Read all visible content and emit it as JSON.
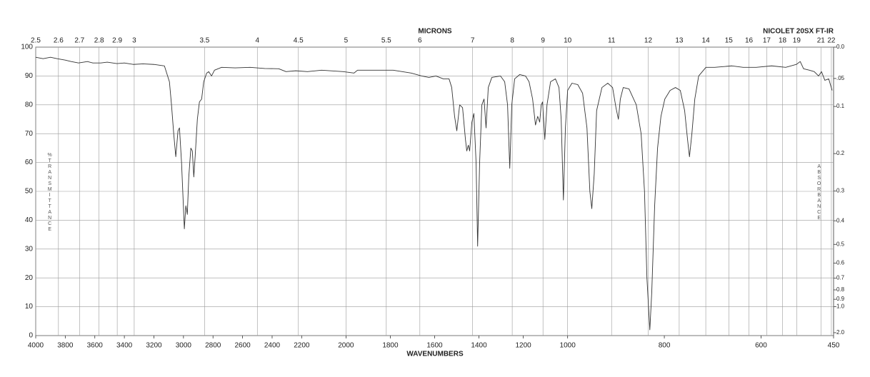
{
  "chart_data": {
    "type": "line",
    "title": "MICRONS",
    "subtitle": "NICOLET 20SX FT-IR",
    "x_label": "WAVENUMBERS",
    "y_label": "%TRANSMITTANCE",
    "y2_label": "ABSORBANCE",
    "color": "#333333",
    "grid": true,
    "xlim": [
      4000,
      450
    ],
    "x_segment_bounds": [
      2200,
      1000
    ],
    "xticks": [
      4000,
      3800,
      3600,
      3400,
      3200,
      3000,
      2800,
      2600,
      2400,
      2200,
      2000,
      1800,
      1600,
      1400,
      1200,
      1000,
      800,
      600,
      450
    ],
    "micron_ticks": [
      2.5,
      2.6,
      2.7,
      2.8,
      2.9,
      3,
      3.5,
      4,
      4.5,
      5,
      5.5,
      6,
      7,
      8,
      9,
      10,
      11,
      12,
      13,
      14,
      15,
      16,
      17,
      18,
      19,
      21,
      22
    ],
    "ylim": [
      0,
      100
    ],
    "yticks": [
      0,
      10,
      20,
      30,
      40,
      50,
      60,
      70,
      80,
      90,
      100
    ],
    "absorbance_ticks": [
      {
        "value": 0,
        "label": "0.0"
      },
      {
        "value": 0.05,
        "label": ".05"
      },
      0.1,
      0.2,
      0.3,
      0.4,
      0.5,
      0.6,
      0.7,
      0.8,
      0.9,
      {
        "value": 1,
        "label": "1.0"
      },
      {
        "value": 2,
        "label": "2.0"
      }
    ],
    "x": [
      4000,
      3950,
      3900,
      3855,
      3800,
      3760,
      3710,
      3650,
      3613,
      3560,
      3516,
      3450,
      3400,
      3340,
      3274,
      3200,
      3129,
      3095,
      3081,
      3066,
      3052,
      3037,
      3027,
      3013,
      2994,
      2984,
      2974,
      2964,
      2950,
      2940,
      2930,
      2921,
      2906,
      2892,
      2877,
      2863,
      2843,
      2829,
      2810,
      2790,
      2742,
      2650,
      2548,
      2450,
      2355,
      2306,
      2240,
      2174,
      2110,
      2013,
      1964,
      1948,
      1870,
      1787,
      1706,
      1658,
      1626,
      1594,
      1561,
      1535,
      1523,
      1510,
      1500,
      1487,
      1474,
      1461,
      1455,
      1448,
      1442,
      1432,
      1423,
      1413,
      1406,
      1397,
      1387,
      1377,
      1368,
      1358,
      1342,
      1303,
      1284,
      1271,
      1261,
      1252,
      1239,
      1216,
      1190,
      1174,
      1158,
      1145,
      1135,
      1126,
      1119,
      1113,
      1103,
      1093,
      1077,
      1055,
      1039,
      1029,
      1019,
      1010,
      1000,
      991,
      979,
      969,
      960,
      954,
      950,
      945,
      940,
      929,
      917,
      907,
      900,
      895,
      891,
      885,
      873,
      858,
      848,
      841,
      836,
      830,
      826,
      820,
      814,
      807,
      799,
      788,
      777,
      767,
      758,
      752,
      748,
      743,
      737,
      729,
      714,
      696,
      660,
      637,
      610,
      578,
      549,
      527,
      519,
      512,
      500,
      490,
      481,
      475,
      468,
      460,
      453
    ],
    "values": [
      96.5,
      96,
      96.5,
      96,
      95.5,
      95,
      94.5,
      95,
      94.5,
      94.5,
      94.8,
      94.3,
      94.5,
      94,
      94.2,
      94,
      93.5,
      88,
      80,
      70,
      62,
      71,
      72,
      60,
      37,
      45,
      42,
      55,
      65,
      64,
      55,
      62,
      75,
      81,
      82,
      88,
      91,
      91.5,
      90,
      92,
      93,
      92.8,
      93,
      92.6,
      92.5,
      91.5,
      91.8,
      91.5,
      92,
      91.5,
      91,
      92,
      92,
      92,
      91,
      90,
      89.5,
      90,
      89,
      89,
      86,
      76,
      71,
      80,
      79,
      68,
      64,
      66,
      64,
      74,
      77,
      60,
      31,
      60,
      80,
      82,
      72,
      86,
      89.5,
      90,
      88,
      80,
      58,
      80,
      89,
      90.5,
      90,
      88,
      82,
      73,
      76,
      74,
      80,
      81,
      68,
      80,
      88,
      89,
      86,
      75,
      47,
      72,
      85,
      87.5,
      87,
      84,
      72,
      50,
      44,
      56,
      78,
      86,
      87.5,
      86,
      79,
      75,
      82,
      86,
      85.5,
      80,
      70,
      50,
      20,
      2,
      15,
      45,
      65,
      76,
      82,
      85,
      86,
      85,
      78,
      68,
      62,
      70,
      82,
      90,
      93,
      93,
      93.5,
      93,
      93,
      93.5,
      93,
      94,
      95,
      92.5,
      92,
      91.5,
      90,
      91.5,
      88.5,
      89,
      85
    ]
  }
}
